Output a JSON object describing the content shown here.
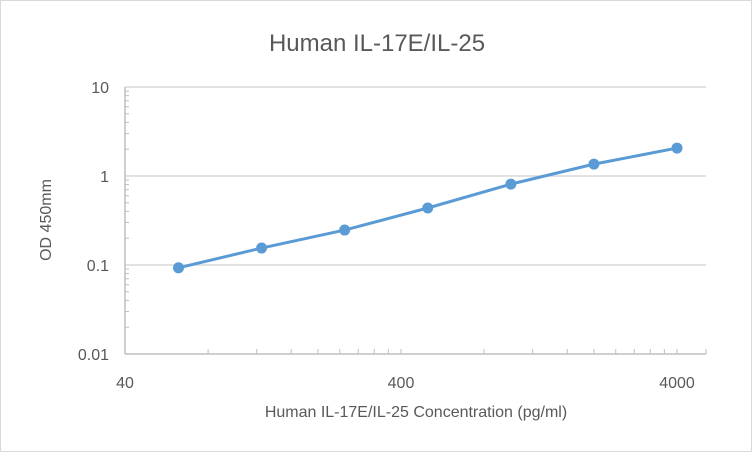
{
  "chart_data": {
    "type": "line",
    "title": "Human IL-17E/IL-25",
    "xlabel": "Human IL-17E/IL-25 Concentration (pg/ml)",
    "ylabel": "OD 450mm",
    "x_scale": "log",
    "y_scale": "log",
    "xlim": [
      40,
      5100
    ],
    "ylim": [
      0.01,
      10
    ],
    "x_ticks": [
      "40",
      "400",
      "4000"
    ],
    "y_ticks": [
      "10",
      "1",
      "0.1",
      "0.01"
    ],
    "grid": "horizontal major",
    "legend": null,
    "series": [
      {
        "name": "Human IL-17E/IL-25",
        "color": "#5b9bd5",
        "x": [
          62.5,
          125,
          250,
          500,
          1000,
          2000,
          4000
        ],
        "y": [
          0.093,
          0.155,
          0.247,
          0.437,
          0.81,
          1.36,
          2.06
        ]
      }
    ]
  },
  "colors": {
    "series": "#5b9bd5",
    "grid": "#d9d9d9",
    "axis": "#bfbfbf",
    "text": "#595959"
  }
}
